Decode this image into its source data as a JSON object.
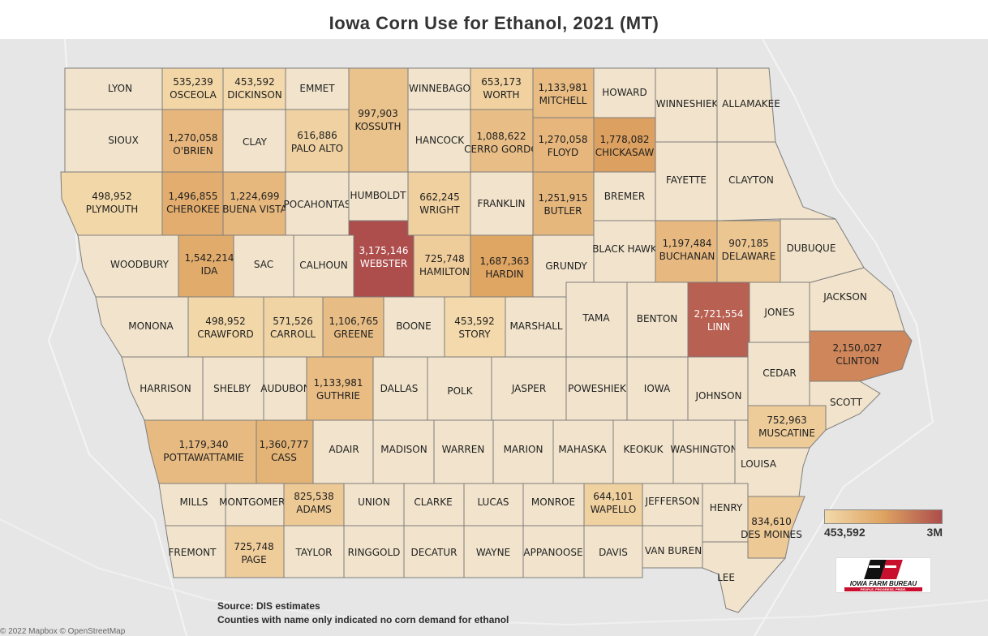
{
  "title": "Iowa Corn Use for Ethanol, 2021 (MT)",
  "legend": {
    "min_label": "453,592",
    "max_label": "3M",
    "min": 453592,
    "max": 3000000,
    "color_low": "#f3d9ab",
    "color_mid": "#dea361",
    "color_high": "#ad4d4c"
  },
  "colors": {
    "no_data": "#f2e4cc",
    "border": "#7d7d7d",
    "background": "#e6e6e6"
  },
  "footnote": {
    "line1": "Source: DIS estimates",
    "line2": "Counties with name only indicated no corn demand for ethanol"
  },
  "attribution": "© 2022 Mapbox © OpenStreetMap",
  "logo": {
    "name": "IOWA FARM BUREAU",
    "tagline": "PEOPLE. PROGRESS. PRIDE."
  },
  "counties": [
    {
      "name": "LYON",
      "value": null
    },
    {
      "name": "OSCEOLA",
      "value": 535239,
      "label": "535,239"
    },
    {
      "name": "DICKINSON",
      "value": 453592,
      "label": "453,592"
    },
    {
      "name": "EMMET",
      "value": null
    },
    {
      "name": "KOSSUTH",
      "value": 997903,
      "label": "997,903"
    },
    {
      "name": "WINNEBAGO",
      "value": null
    },
    {
      "name": "WORTH",
      "value": 653173,
      "label": "653,173"
    },
    {
      "name": "MITCHELL",
      "value": 1133981,
      "label": "1,133,981"
    },
    {
      "name": "HOWARD",
      "value": null
    },
    {
      "name": "WINNESHIEK",
      "value": null
    },
    {
      "name": "ALLAMAKEE",
      "value": null
    },
    {
      "name": "SIOUX",
      "value": null
    },
    {
      "name": "O'BRIEN",
      "value": 1270058,
      "label": "1,270,058"
    },
    {
      "name": "CLAY",
      "value": null
    },
    {
      "name": "PALO ALTO",
      "value": 616886,
      "label": "616,886"
    },
    {
      "name": "HANCOCK",
      "value": null
    },
    {
      "name": "CERRO GORDO",
      "value": 1088622,
      "label": "1,088,622"
    },
    {
      "name": "FLOYD",
      "value": 1270058,
      "label": "1,270,058"
    },
    {
      "name": "CHICKASAW",
      "value": 1778082,
      "label": "1,778,082"
    },
    {
      "name": "FAYETTE",
      "value": null
    },
    {
      "name": "CLAYTON",
      "value": null
    },
    {
      "name": "PLYMOUTH",
      "value": 498952,
      "label": "498,952"
    },
    {
      "name": "CHEROKEE",
      "value": 1496855,
      "label": "1,496,855"
    },
    {
      "name": "BUENA VISTA",
      "value": 1224699,
      "label": "1,224,699"
    },
    {
      "name": "POCAHONTAS",
      "value": null
    },
    {
      "name": "HUMBOLDT",
      "value": null
    },
    {
      "name": "WRIGHT",
      "value": 662245,
      "label": "662,245"
    },
    {
      "name": "FRANKLIN",
      "value": null
    },
    {
      "name": "BUTLER",
      "value": 1251915,
      "label": "1,251,915"
    },
    {
      "name": "BREMER",
      "value": null
    },
    {
      "name": "WOODBURY",
      "value": null
    },
    {
      "name": "IDA",
      "value": 1542214,
      "label": "1,542,214"
    },
    {
      "name": "SAC",
      "value": null
    },
    {
      "name": "CALHOUN",
      "value": null
    },
    {
      "name": "WEBSTER",
      "value": 3175146,
      "label": "3,175,146"
    },
    {
      "name": "HAMILTON",
      "value": 725748,
      "label": "725,748"
    },
    {
      "name": "HARDIN",
      "value": 1687363,
      "label": "1,687,363"
    },
    {
      "name": "GRUNDY",
      "value": null
    },
    {
      "name": "BLACK HAWK",
      "value": null
    },
    {
      "name": "BUCHANAN",
      "value": 1197484,
      "label": "1,197,484"
    },
    {
      "name": "DELAWARE",
      "value": 907185,
      "label": "907,185"
    },
    {
      "name": "DUBUQUE",
      "value": null
    },
    {
      "name": "MONONA",
      "value": null
    },
    {
      "name": "CRAWFORD",
      "value": 498952,
      "label": "498,952"
    },
    {
      "name": "CARROLL",
      "value": 571526,
      "label": "571,526"
    },
    {
      "name": "GREENE",
      "value": 1106765,
      "label": "1,106,765"
    },
    {
      "name": "BOONE",
      "value": null
    },
    {
      "name": "STORY",
      "value": 453592,
      "label": "453,592"
    },
    {
      "name": "MARSHALL",
      "value": null
    },
    {
      "name": "TAMA",
      "value": null
    },
    {
      "name": "BENTON",
      "value": null
    },
    {
      "name": "LINN",
      "value": 2721554,
      "label": "2,721,554"
    },
    {
      "name": "JONES",
      "value": null
    },
    {
      "name": "JACKSON",
      "value": null
    },
    {
      "name": "HARRISON",
      "value": null
    },
    {
      "name": "SHELBY",
      "value": null
    },
    {
      "name": "AUDUBON",
      "value": null
    },
    {
      "name": "GUTHRIE",
      "value": 1133981,
      "label": "1,133,981"
    },
    {
      "name": "DALLAS",
      "value": null
    },
    {
      "name": "POLK",
      "value": null
    },
    {
      "name": "JASPER",
      "value": null
    },
    {
      "name": "POWESHIEK",
      "value": null
    },
    {
      "name": "IOWA",
      "value": null
    },
    {
      "name": "JOHNSON",
      "value": null
    },
    {
      "name": "CEDAR",
      "value": null
    },
    {
      "name": "CLINTON",
      "value": 2150027,
      "label": "2,150,027"
    },
    {
      "name": "SCOTT",
      "value": null
    },
    {
      "name": "POTTAWATTAMIE",
      "value": 1179340,
      "label": "1,179,340"
    },
    {
      "name": "CASS",
      "value": 1360777,
      "label": "1,360,777"
    },
    {
      "name": "ADAIR",
      "value": null
    },
    {
      "name": "MADISON",
      "value": null
    },
    {
      "name": "WARREN",
      "value": null
    },
    {
      "name": "MARION",
      "value": null
    },
    {
      "name": "MAHASKA",
      "value": null
    },
    {
      "name": "KEOKUK",
      "value": null
    },
    {
      "name": "WASHINGTON",
      "value": null
    },
    {
      "name": "MUSCATINE",
      "value": 752963,
      "label": "752,963"
    },
    {
      "name": "LOUISA",
      "value": null
    },
    {
      "name": "MILLS",
      "value": null
    },
    {
      "name": "MONTGOMERY",
      "value": null
    },
    {
      "name": "ADAMS",
      "value": 825538,
      "label": "825,538"
    },
    {
      "name": "UNION",
      "value": null
    },
    {
      "name": "CLARKE",
      "value": null
    },
    {
      "name": "LUCAS",
      "value": null
    },
    {
      "name": "MONROE",
      "value": null
    },
    {
      "name": "WAPELLO",
      "value": 644101,
      "label": "644,101"
    },
    {
      "name": "JEFFERSON",
      "value": null
    },
    {
      "name": "HENRY",
      "value": null
    },
    {
      "name": "DES MOINES",
      "value": 834610,
      "label": "834,610"
    },
    {
      "name": "FREMONT",
      "value": null
    },
    {
      "name": "PAGE",
      "value": 725748,
      "label": "725,748"
    },
    {
      "name": "TAYLOR",
      "value": null
    },
    {
      "name": "RINGGOLD",
      "value": null
    },
    {
      "name": "DECATUR",
      "value": null
    },
    {
      "name": "WAYNE",
      "value": null
    },
    {
      "name": "APPANOOSE",
      "value": null
    },
    {
      "name": "DAVIS",
      "value": null
    },
    {
      "name": "VAN BUREN",
      "value": null
    },
    {
      "name": "LEE",
      "value": null
    }
  ]
}
